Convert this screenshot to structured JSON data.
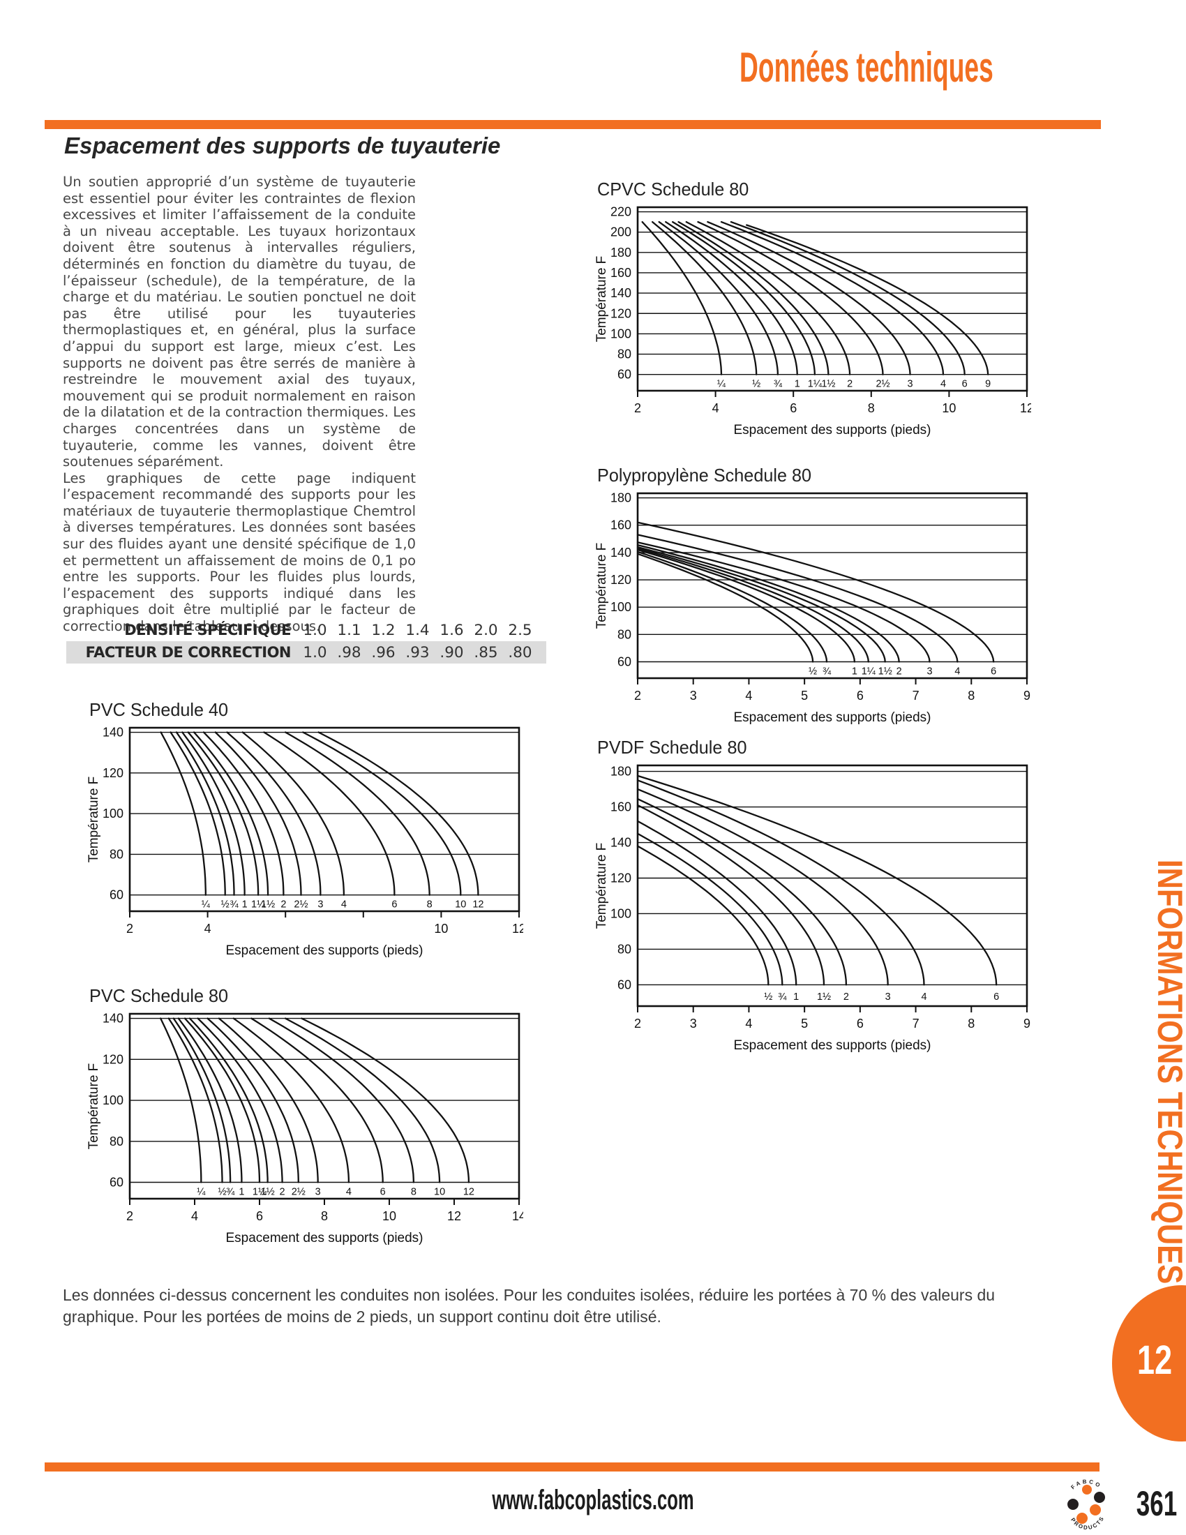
{
  "page": {
    "header_title": "Données techniques",
    "section_title": "Espacement des supports de tuyauterie",
    "body_paragraphs": {
      "p1": "Un soutien approprié d’un système de tuyauterie est essentiel pour éviter les contraintes de flexion excessives et limiter l’affaissement de la conduite à un niveau acceptable. Les tuyaux horizontaux doivent être soutenus à intervalles réguliers, déterminés en fonction du diamètre du tuyau, de l’épaisseur (schedule), de la température, de la charge et du matériau. Le soutien ponctuel ne doit pas être utilisé pour les tuyauteries thermoplastiques et, en général, plus la surface d’appui du support est large, mieux c’est. Les supports ne doivent pas être serrés de manière à restreindre le mouvement axial des tuyaux, mouvement qui se produit normalement en raison de la dilatation et de la contraction thermiques. Les charges concentrées dans un système de tuyauterie, comme les vannes, doivent être soutenues séparément.",
      "p2": "Les graphiques de cette page indiquent l’espacement recommandé des supports pour les matériaux de tuyauterie thermoplastique Chemtrol à diverses températures. Les données sont basées sur des fluides ayant une densité spécifique de 1,0 et permettent un affaissement de moins de 0,1 po entre les supports. Pour les fluides plus lourds, l’espacement des supports indiqué dans les graphiques doit être multiplié par le facteur de correction dans le tableau ci-dessous."
    },
    "note": "Les données ci-dessus concernent les conduites non isolées. Pour les conduites isolées, réduire les portées à 70 % des valeurs du graphique. Pour les portées de moins de 2 pieds, un support continu doit être utilisé.",
    "sidebar_text": "INFORMATIONS TECHNIQUES",
    "tab_number": "12",
    "footer_url": "www.fabcoplastics.com",
    "page_number": "361",
    "logo_text_top": "FABCO",
    "logo_text_bottom": "PRODUCTS"
  },
  "colors": {
    "accent": "#F26F21",
    "table_row_bg": "#DCDCDC",
    "ink": "#111111"
  },
  "correction_table": {
    "rows": [
      {
        "label": "DENSITÉ SPÉCIFIQUE",
        "values": [
          "1.0",
          "1.1",
          "1.2",
          "1.4",
          "1.6",
          "2.0",
          "2.5"
        ]
      },
      {
        "label": "FACTEUR DE CORRECTION",
        "values": [
          "1.0",
          ".98",
          ".96",
          ".93",
          ".90",
          ".85",
          ".80"
        ]
      }
    ]
  },
  "chart_data": [
    {
      "id": "cpvc80",
      "type": "line",
      "title": "CPVC Schedule 80",
      "xlabel": "Espacement des supports (pieds)",
      "ylabel": "Température F",
      "xlim": [
        2,
        12
      ],
      "ylim": [
        60,
        220
      ],
      "ytick_step": 20,
      "xticks": [
        2,
        4,
        6,
        8,
        10,
        12
      ],
      "xtick_labels": [
        "2",
        "4",
        "6",
        "8",
        "10",
        "12"
      ],
      "grid": true,
      "curve_exponent": 1.8,
      "curves": [
        {
          "label": "¼",
          "start": [
            2.12,
            210
          ],
          "end_x": 4.15
        },
        {
          "label": "½",
          "start": [
            2.38,
            210
          ],
          "end_x": 5.05
        },
        {
          "label": "¾",
          "start": [
            2.55,
            210
          ],
          "end_x": 5.6
        },
        {
          "label": "1",
          "start": [
            2.72,
            210
          ],
          "end_x": 6.1
        },
        {
          "label": "1¼",
          "start": [
            2.9,
            210
          ],
          "end_x": 6.55
        },
        {
          "label": "1½",
          "start": [
            3.05,
            210
          ],
          "end_x": 6.9
        },
        {
          "label": "2",
          "start": [
            3.25,
            210
          ],
          "end_x": 7.45
        },
        {
          "label": "2½",
          "start": [
            3.55,
            210
          ],
          "end_x": 8.3
        },
        {
          "label": "3",
          "start": [
            3.8,
            210
          ],
          "end_x": 9.0
        },
        {
          "label": "4",
          "start": [
            4.15,
            210
          ],
          "end_x": 9.85
        },
        {
          "label": "6",
          "start": [
            4.4,
            210
          ],
          "end_x": 10.4
        },
        {
          "label": "9",
          "start": [
            4.8,
            207
          ],
          "end_x": 11.0
        }
      ]
    },
    {
      "id": "pp80",
      "type": "line",
      "title": "Polypropylène Schedule 80",
      "xlabel": "Espacement des supports (pieds)",
      "ylabel": "Température F",
      "xlim": [
        2,
        9
      ],
      "ylim": [
        60,
        180
      ],
      "ytick_step": 20,
      "xticks": [
        2,
        3,
        4,
        5,
        6,
        7,
        8,
        9
      ],
      "xtick_labels": [
        "2",
        "3",
        "4",
        "5",
        "6",
        "7",
        "8",
        "9"
      ],
      "grid": true,
      "curve_exponent": 1.8,
      "curves": [
        {
          "label": "½",
          "start": [
            2,
            139
          ],
          "end_x": 5.15
        },
        {
          "label": "¾",
          "start": [
            2,
            140.5
          ],
          "end_x": 5.4
        },
        {
          "label": "1",
          "start": [
            2,
            142
          ],
          "end_x": 5.9
        },
        {
          "label": "1¼",
          "start": [
            2,
            143
          ],
          "end_x": 6.15
        },
        {
          "label": "1½",
          "start": [
            2,
            144
          ],
          "end_x": 6.45
        },
        {
          "label": "2",
          "start": [
            2,
            145.5
          ],
          "end_x": 6.7
        },
        {
          "label": "3",
          "start": [
            2,
            147.5
          ],
          "end_x": 7.25
        },
        {
          "label": "4",
          "start": [
            2,
            153
          ],
          "end_x": 7.75
        },
        {
          "label": "6",
          "start": [
            2,
            162
          ],
          "end_x": 8.4
        }
      ]
    },
    {
      "id": "pvdf80",
      "type": "line",
      "title": "PVDF Schedule 80",
      "xlabel": "Espacement des supports (pieds)",
      "ylabel": "Température F",
      "xlim": [
        2,
        9
      ],
      "ylim": [
        60,
        180
      ],
      "ytick_step": 20,
      "xticks": [
        2,
        3,
        4,
        5,
        6,
        7,
        8,
        9
      ],
      "xtick_labels": [
        "2",
        "3",
        "4",
        "5",
        "6",
        "7",
        "8",
        "9"
      ],
      "grid": true,
      "curve_exponent": 1.9,
      "curves": [
        {
          "label": "½",
          "start": [
            2,
            138
          ],
          "end_x": 4.35
        },
        {
          "label": "¾",
          "start": [
            2,
            145
          ],
          "end_x": 4.6
        },
        {
          "label": "1",
          "start": [
            2,
            152
          ],
          "end_x": 4.85
        },
        {
          "label": "1½",
          "start": [
            2,
            161
          ],
          "end_x": 5.35
        },
        {
          "label": "2",
          "start": [
            2,
            164.5
          ],
          "end_x": 5.75
        },
        {
          "label": "3",
          "start": [
            2,
            170
          ],
          "end_x": 6.5
        },
        {
          "label": "4",
          "start": [
            2,
            175
          ],
          "end_x": 7.15
        },
        {
          "label": "6",
          "start": [
            2,
            177.5
          ],
          "end_x": 8.45
        }
      ]
    },
    {
      "id": "pvc40",
      "type": "line",
      "title": "PVC Schedule 40",
      "xlabel": "Espacement des supports (pieds)",
      "ylabel": "Température F",
      "xlim": [
        2,
        12
      ],
      "ylim": [
        60,
        140
      ],
      "ytick_step": 20,
      "xticks": [
        2,
        4,
        6,
        8,
        10,
        12
      ],
      "xtick_labels": [
        "2",
        "4",
        "",
        "",
        "10",
        "12"
      ],
      "grid": true,
      "curve_exponent": 2.0,
      "curves": [
        {
          "label": "¼",
          "start": [
            2.8,
            140
          ],
          "end_x": 3.95
        },
        {
          "label": "½",
          "start": [
            3.05,
            140
          ],
          "end_x": 4.45
        },
        {
          "label": "¾",
          "start": [
            3.2,
            140
          ],
          "end_x": 4.68
        },
        {
          "label": "1",
          "start": [
            3.35,
            140
          ],
          "end_x": 4.95
        },
        {
          "label": "1¼",
          "start": [
            3.5,
            140
          ],
          "end_x": 5.3
        },
        {
          "label": "1½",
          "start": [
            3.65,
            140
          ],
          "end_x": 5.55
        },
        {
          "label": "2",
          "start": [
            3.9,
            140
          ],
          "end_x": 5.95
        },
        {
          "label": "2½",
          "start": [
            4.2,
            140
          ],
          "end_x": 6.4
        },
        {
          "label": "3",
          "start": [
            4.5,
            140
          ],
          "end_x": 6.9
        },
        {
          "label": "4",
          "start": [
            4.9,
            140
          ],
          "end_x": 7.5
        },
        {
          "label": "6",
          "start": [
            5.45,
            140
          ],
          "end_x": 8.8
        },
        {
          "label": "8",
          "start": [
            6.0,
            140
          ],
          "end_x": 9.7
        },
        {
          "label": "10",
          "start": [
            6.45,
            140
          ],
          "end_x": 10.5
        },
        {
          "label": "12",
          "start": [
            6.85,
            140
          ],
          "end_x": 10.95
        }
      ]
    },
    {
      "id": "pvc80",
      "type": "line",
      "title": "PVC Schedule 80",
      "xlabel": "Espacement des supports (pieds)",
      "ylabel": "Température F",
      "xlim": [
        2,
        14
      ],
      "ylim": [
        60,
        140
      ],
      "ytick_step": 20,
      "xticks": [
        2,
        4,
        6,
        8,
        10,
        12,
        14
      ],
      "xtick_labels": [
        "2",
        "4",
        "6",
        "8",
        "10",
        "12",
        "14"
      ],
      "grid": true,
      "curve_exponent": 2.0,
      "curves": [
        {
          "label": "¼",
          "start": [
            2.95,
            140
          ],
          "end_x": 4.2
        },
        {
          "label": "½",
          "start": [
            3.2,
            140
          ],
          "end_x": 4.85
        },
        {
          "label": "¾",
          "start": [
            3.35,
            140
          ],
          "end_x": 5.1
        },
        {
          "label": "1",
          "start": [
            3.5,
            140
          ],
          "end_x": 5.45
        },
        {
          "label": "1¼",
          "start": [
            3.7,
            140
          ],
          "end_x": 6.0
        },
        {
          "label": "1½",
          "start": [
            3.85,
            140
          ],
          "end_x": 6.25
        },
        {
          "label": "2",
          "start": [
            4.1,
            140
          ],
          "end_x": 6.7
        },
        {
          "label": "2½",
          "start": [
            4.4,
            140
          ],
          "end_x": 7.2
        },
        {
          "label": "3",
          "start": [
            4.75,
            140
          ],
          "end_x": 7.8
        },
        {
          "label": "4",
          "start": [
            5.2,
            140
          ],
          "end_x": 8.75
        },
        {
          "label": "6",
          "start": [
            5.75,
            140
          ],
          "end_x": 9.8
        },
        {
          "label": "8",
          "start": [
            6.3,
            140
          ],
          "end_x": 10.75
        },
        {
          "label": "10",
          "start": [
            6.8,
            140
          ],
          "end_x": 11.55
        },
        {
          "label": "12",
          "start": [
            7.3,
            140
          ],
          "end_x": 12.45
        }
      ]
    }
  ]
}
